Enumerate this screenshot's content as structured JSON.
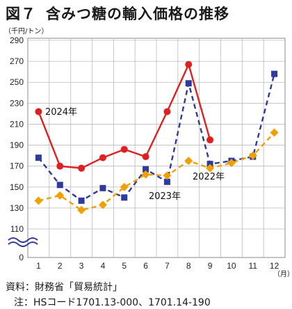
{
  "header": {
    "fig_label": "図７",
    "title": "含みつ糖の輸入価格の推移"
  },
  "chart_data": {
    "type": "line",
    "title": "含みつ糖の輸入価格の推移",
    "ylabel": "（千円/トン）",
    "xlabel": "（月）",
    "x": [
      1,
      2,
      3,
      4,
      5,
      6,
      7,
      8,
      9,
      10,
      11,
      12
    ],
    "x_tick_labels": [
      "1",
      "2",
      "3",
      "4",
      "5",
      "6",
      "7",
      "8",
      "9",
      "10",
      "11",
      "12"
    ],
    "y_tick_labels": [
      "290",
      "270",
      "250",
      "230",
      "210",
      "190",
      "170",
      "150",
      "130",
      "110",
      "0"
    ],
    "ylim": [
      110,
      290
    ],
    "y_axis_break": true,
    "grid": true,
    "series": [
      {
        "name": "2024年",
        "color": "#e02020",
        "style": "solid",
        "marker": "circle",
        "values": [
          222,
          170,
          168,
          178,
          186,
          179,
          222,
          267,
          195,
          null,
          null,
          null
        ]
      },
      {
        "name": "2023年",
        "color": "#2e3a9c",
        "style": "dashed",
        "marker": "square",
        "values": [
          178,
          152,
          137,
          149,
          140,
          167,
          155,
          249,
          172,
          175,
          179,
          258
        ]
      },
      {
        "name": "2022年",
        "color": "#f0a000",
        "style": "dashed",
        "marker": "diamond",
        "values": [
          137,
          142,
          128,
          133,
          150,
          162,
          161,
          175,
          168,
          173,
          180,
          202
        ]
      }
    ],
    "annotations": [
      {
        "series": "2024年",
        "text": "2024年"
      },
      {
        "series": "2022年",
        "text": "2022年"
      },
      {
        "series": "2023年",
        "text": "2023年"
      }
    ]
  },
  "footer": {
    "source_label": "資料：",
    "source_text": "財務省「貿易統計」",
    "note_label": "注：",
    "note_text": "HSコード1701.13-000、1701.14-190"
  }
}
